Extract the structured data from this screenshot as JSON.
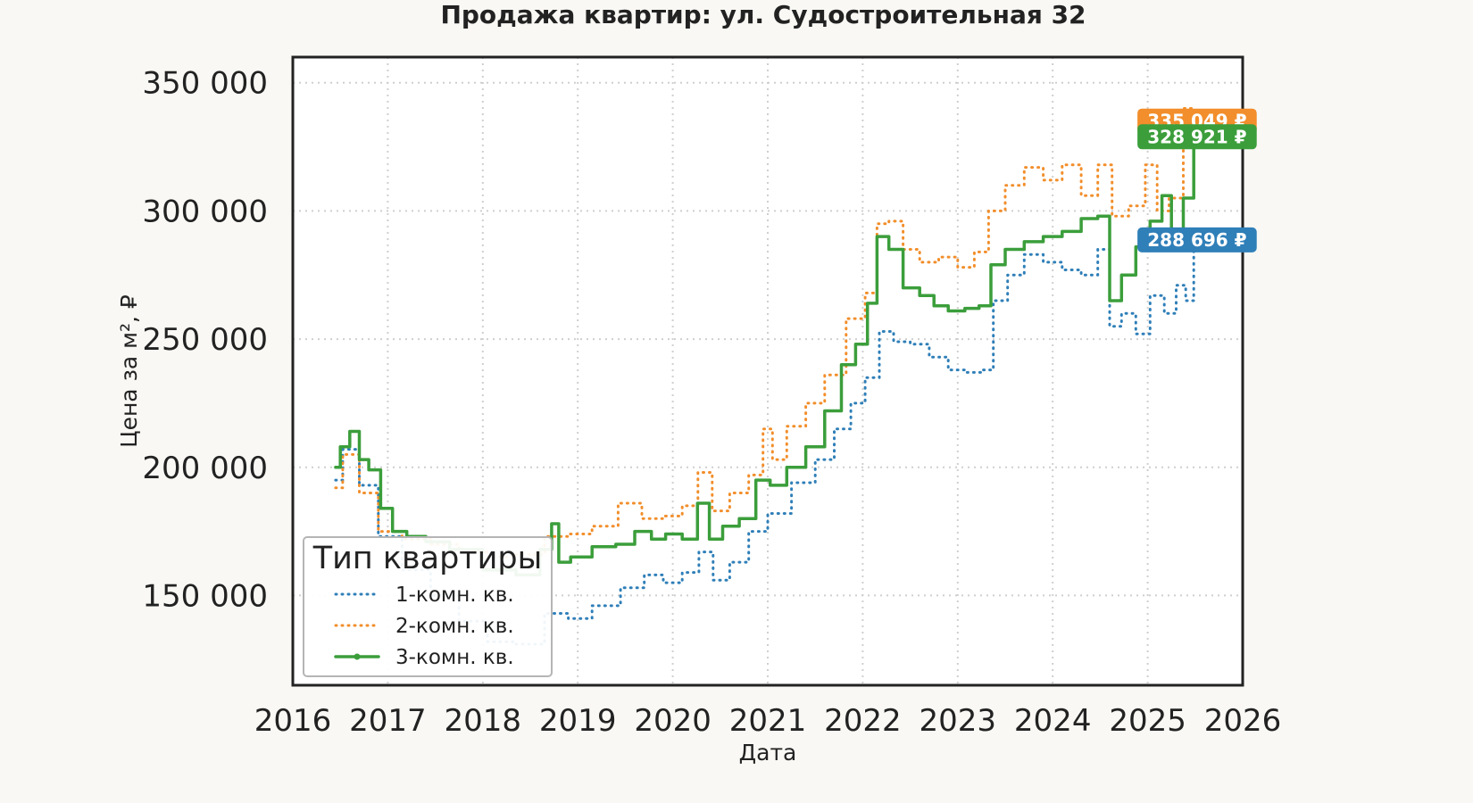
{
  "chart_data": {
    "type": "line",
    "title": "Продажа квартир: ул. Судостроительная 32",
    "xlabel": "Дата",
    "ylabel": "Цена за м², ₽",
    "xlim": [
      2016.0,
      2026.0
    ],
    "ylim": [
      115000,
      360000
    ],
    "x_ticks": [
      2016,
      2017,
      2018,
      2019,
      2020,
      2021,
      2022,
      2023,
      2024,
      2025,
      2026
    ],
    "x_tick_labels": [
      "2016",
      "2017",
      "2018",
      "2019",
      "2020",
      "2021",
      "2022",
      "2023",
      "2024",
      "2025",
      "2026"
    ],
    "y_ticks": [
      150000,
      200000,
      250000,
      300000,
      350000
    ],
    "y_tick_labels": [
      "150 000",
      "200 000",
      "250 000",
      "300 000",
      "350 000"
    ],
    "grid": true,
    "legend": {
      "title": "Тип квартиры",
      "placement": "lower-left"
    },
    "series": [
      {
        "name": "1-комн. кв.",
        "color": "#2f7fb8",
        "style": "dotted",
        "last_label": "288 696 ₽",
        "points": [
          [
            2016.45,
            195000
          ],
          [
            2016.6,
            207000
          ],
          [
            2016.8,
            193000
          ],
          [
            2017.0,
            173000
          ],
          [
            2017.3,
            160000
          ],
          [
            2017.6,
            150000
          ],
          [
            2017.9,
            140000
          ],
          [
            2018.2,
            132000
          ],
          [
            2018.5,
            131000
          ],
          [
            2018.8,
            143000
          ],
          [
            2019.0,
            141000
          ],
          [
            2019.3,
            146000
          ],
          [
            2019.6,
            153000
          ],
          [
            2019.8,
            158000
          ],
          [
            2020.0,
            155000
          ],
          [
            2020.2,
            159000
          ],
          [
            2020.35,
            167000
          ],
          [
            2020.5,
            156000
          ],
          [
            2020.7,
            163000
          ],
          [
            2020.9,
            175000
          ],
          [
            2021.1,
            182000
          ],
          [
            2021.4,
            194000
          ],
          [
            2021.6,
            203000
          ],
          [
            2021.8,
            215000
          ],
          [
            2021.95,
            225000
          ],
          [
            2022.1,
            235000
          ],
          [
            2022.25,
            253000
          ],
          [
            2022.4,
            249000
          ],
          [
            2022.6,
            248000
          ],
          [
            2022.8,
            243000
          ],
          [
            2023.0,
            238000
          ],
          [
            2023.2,
            237000
          ],
          [
            2023.3,
            238000
          ],
          [
            2023.45,
            265000
          ],
          [
            2023.6,
            275000
          ],
          [
            2023.8,
            283000
          ],
          [
            2024.0,
            280000
          ],
          [
            2024.2,
            277000
          ],
          [
            2024.4,
            275000
          ],
          [
            2024.55,
            285000
          ],
          [
            2024.65,
            255000
          ],
          [
            2024.8,
            260000
          ],
          [
            2024.95,
            252000
          ],
          [
            2025.1,
            267000
          ],
          [
            2025.25,
            260000
          ],
          [
            2025.35,
            271000
          ],
          [
            2025.45,
            265000
          ],
          [
            2025.52,
            288696
          ]
        ]
      },
      {
        "name": "2-комн. кв.",
        "color": "#f28e2b",
        "style": "dotted",
        "last_label": "335 049 ₽",
        "points": [
          [
            2016.45,
            192000
          ],
          [
            2016.6,
            205000
          ],
          [
            2016.8,
            190000
          ],
          [
            2017.0,
            175000
          ],
          [
            2017.3,
            172000
          ],
          [
            2017.6,
            170000
          ],
          [
            2017.9,
            167000
          ],
          [
            2018.2,
            165000
          ],
          [
            2018.5,
            166000
          ],
          [
            2018.8,
            173000
          ],
          [
            2019.0,
            174000
          ],
          [
            2019.3,
            177000
          ],
          [
            2019.55,
            186000
          ],
          [
            2019.8,
            180000
          ],
          [
            2020.0,
            181000
          ],
          [
            2020.2,
            185000
          ],
          [
            2020.33,
            198000
          ],
          [
            2020.5,
            183000
          ],
          [
            2020.7,
            190000
          ],
          [
            2020.9,
            197000
          ],
          [
            2021.0,
            215000
          ],
          [
            2021.1,
            203000
          ],
          [
            2021.3,
            216000
          ],
          [
            2021.5,
            225000
          ],
          [
            2021.7,
            236000
          ],
          [
            2021.95,
            258000
          ],
          [
            2022.1,
            268000
          ],
          [
            2022.2,
            295000
          ],
          [
            2022.35,
            296000
          ],
          [
            2022.5,
            285000
          ],
          [
            2022.7,
            280000
          ],
          [
            2022.9,
            282000
          ],
          [
            2023.1,
            278000
          ],
          [
            2023.25,
            284000
          ],
          [
            2023.4,
            300000
          ],
          [
            2023.6,
            310000
          ],
          [
            2023.8,
            317000
          ],
          [
            2024.0,
            312000
          ],
          [
            2024.2,
            318000
          ],
          [
            2024.4,
            306000
          ],
          [
            2024.55,
            318000
          ],
          [
            2024.7,
            298000
          ],
          [
            2024.9,
            302000
          ],
          [
            2025.05,
            318000
          ],
          [
            2025.15,
            300000
          ],
          [
            2025.3,
            305000
          ],
          [
            2025.45,
            340000
          ],
          [
            2025.52,
            335049
          ]
        ]
      },
      {
        "name": "3-комн. кв.",
        "color": "#3b9e3b",
        "style": "solid",
        "last_label": "328 921 ₽",
        "points": [
          [
            2016.45,
            200000
          ],
          [
            2016.55,
            208000
          ],
          [
            2016.65,
            214000
          ],
          [
            2016.75,
            203000
          ],
          [
            2016.85,
            199000
          ],
          [
            2017.0,
            184000
          ],
          [
            2017.1,
            175000
          ],
          [
            2017.3,
            173000
          ],
          [
            2017.5,
            171000
          ],
          [
            2017.8,
            168000
          ],
          [
            2018.2,
            160000
          ],
          [
            2018.5,
            158000
          ],
          [
            2018.7,
            168000
          ],
          [
            2018.75,
            178000
          ],
          [
            2018.85,
            163000
          ],
          [
            2019.0,
            165000
          ],
          [
            2019.3,
            169000
          ],
          [
            2019.5,
            170000
          ],
          [
            2019.7,
            175000
          ],
          [
            2019.85,
            172000
          ],
          [
            2020.0,
            174000
          ],
          [
            2020.2,
            172000
          ],
          [
            2020.32,
            186000
          ],
          [
            2020.45,
            172000
          ],
          [
            2020.6,
            177000
          ],
          [
            2020.8,
            180000
          ],
          [
            2020.95,
            195000
          ],
          [
            2021.1,
            193000
          ],
          [
            2021.3,
            200000
          ],
          [
            2021.5,
            208000
          ],
          [
            2021.7,
            222000
          ],
          [
            2021.85,
            240000
          ],
          [
            2022.0,
            248000
          ],
          [
            2022.1,
            264000
          ],
          [
            2022.2,
            290000
          ],
          [
            2022.35,
            285000
          ],
          [
            2022.5,
            270000
          ],
          [
            2022.7,
            267000
          ],
          [
            2022.8,
            263000
          ],
          [
            2023.0,
            261000
          ],
          [
            2023.15,
            262000
          ],
          [
            2023.3,
            263000
          ],
          [
            2023.4,
            279000
          ],
          [
            2023.6,
            285000
          ],
          [
            2023.8,
            288000
          ],
          [
            2024.0,
            290000
          ],
          [
            2024.2,
            292000
          ],
          [
            2024.4,
            297000
          ],
          [
            2024.55,
            298000
          ],
          [
            2024.65,
            265000
          ],
          [
            2024.8,
            275000
          ],
          [
            2024.95,
            286000
          ],
          [
            2025.1,
            296000
          ],
          [
            2025.2,
            306000
          ],
          [
            2025.3,
            290000
          ],
          [
            2025.45,
            305000
          ],
          [
            2025.52,
            328921
          ]
        ]
      }
    ]
  }
}
